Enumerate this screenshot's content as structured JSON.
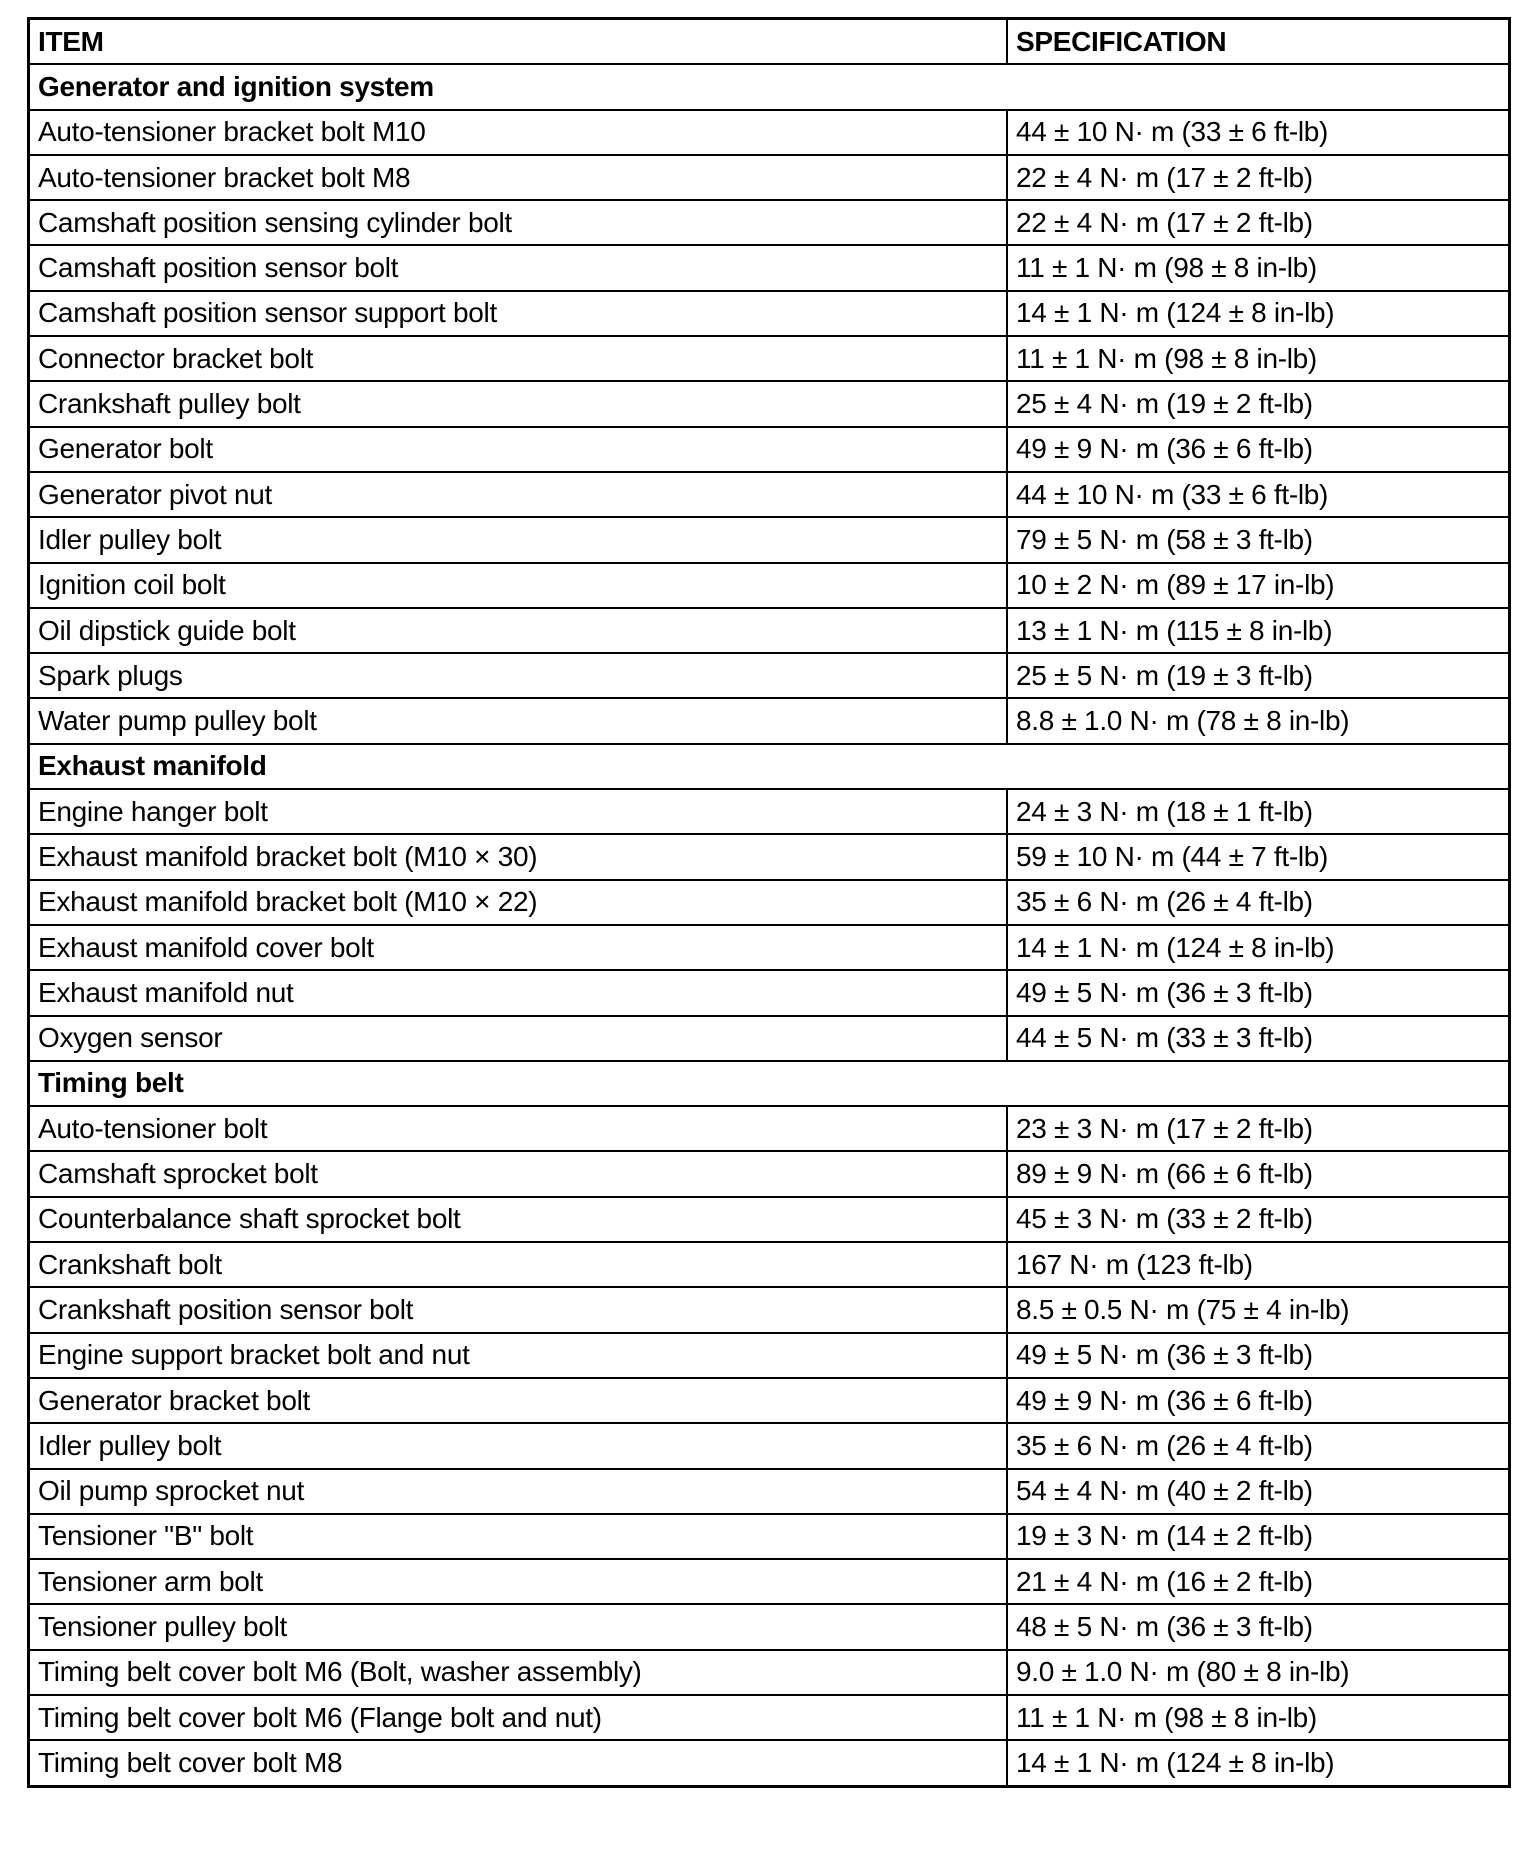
{
  "table": {
    "headers": [
      "ITEM",
      "SPECIFICATION"
    ],
    "sections": [
      {
        "title": "Generator and ignition system",
        "rows": [
          [
            "Auto-tensioner bracket bolt M10",
            "44 ± 10 N· m (33 ± 6 ft-lb)"
          ],
          [
            "Auto-tensioner bracket bolt M8",
            "22 ± 4 N· m (17 ± 2 ft-lb)"
          ],
          [
            "Camshaft position sensing cylinder bolt",
            "22 ± 4 N· m (17 ± 2 ft-lb)"
          ],
          [
            "Camshaft position sensor bolt",
            "11 ± 1 N· m (98 ± 8 in-lb)"
          ],
          [
            "Camshaft position sensor support bolt",
            "14 ± 1 N· m (124 ± 8 in-lb)"
          ],
          [
            "Connector bracket bolt",
            "11 ± 1 N· m (98 ± 8 in-lb)"
          ],
          [
            "Crankshaft pulley bolt",
            "25 ± 4 N· m (19 ± 2 ft-lb)"
          ],
          [
            "Generator bolt",
            "49 ± 9 N· m (36 ± 6 ft-lb)"
          ],
          [
            "Generator pivot nut",
            "44 ± 10 N· m (33 ± 6 ft-lb)"
          ],
          [
            "Idler pulley bolt",
            "79 ± 5 N· m (58 ± 3 ft-lb)"
          ],
          [
            "Ignition coil bolt",
            "10 ± 2 N· m (89 ± 17 in-lb)"
          ],
          [
            "Oil dipstick guide bolt",
            "13 ± 1 N· m (115 ± 8 in-lb)"
          ],
          [
            "Spark plugs",
            "25 ± 5 N· m (19 ± 3 ft-lb)"
          ],
          [
            "Water pump pulley bolt",
            "8.8 ± 1.0 N· m (78 ± 8 in-lb)"
          ]
        ]
      },
      {
        "title": "Exhaust manifold",
        "rows": [
          [
            "Engine hanger bolt",
            "24 ± 3 N· m (18 ± 1 ft-lb)"
          ],
          [
            "Exhaust manifold bracket bolt (M10 × 30)",
            "59 ± 10 N· m (44 ± 7 ft-lb)"
          ],
          [
            "Exhaust manifold bracket bolt (M10 × 22)",
            "35 ± 6 N· m (26 ± 4 ft-lb)"
          ],
          [
            "Exhaust manifold cover bolt",
            "14 ± 1 N· m (124 ± 8 in-lb)"
          ],
          [
            "Exhaust manifold nut",
            "49 ± 5 N· m (36 ± 3 ft-lb)"
          ],
          [
            "Oxygen sensor",
            "44 ± 5 N· m (33 ± 3 ft-lb)"
          ]
        ]
      },
      {
        "title": "Timing belt",
        "rows": [
          [
            "Auto-tensioner bolt",
            "23 ± 3 N· m (17 ± 2 ft-lb)"
          ],
          [
            "Camshaft sprocket bolt",
            "89 ± 9 N· m (66 ± 6 ft-lb)"
          ],
          [
            "Counterbalance shaft sprocket bolt",
            "45 ± 3 N· m (33 ± 2 ft-lb)"
          ],
          [
            "Crankshaft bolt",
            "167 N· m (123 ft-lb)"
          ],
          [
            "Crankshaft position sensor bolt",
            "8.5 ± 0.5 N· m (75 ± 4 in-lb)"
          ],
          [
            "Engine support bracket bolt and nut",
            "49 ± 5 N· m (36 ± 3 ft-lb)"
          ],
          [
            "Generator bracket bolt",
            "49 ± 9 N· m (36 ± 6 ft-lb)"
          ],
          [
            "Idler pulley bolt",
            "35 ± 6 N· m (26 ± 4 ft-lb)"
          ],
          [
            "Oil pump sprocket nut",
            "54 ± 4 N· m (40 ± 2 ft-lb)"
          ],
          [
            "Tensioner \"B\" bolt",
            "19 ± 3 N· m (14 ± 2 ft-lb)"
          ],
          [
            "Tensioner arm bolt",
            "21 ± 4 N· m (16 ± 2 ft-lb)"
          ],
          [
            "Tensioner pulley bolt",
            "48 ± 5 N· m (36 ± 3 ft-lb)"
          ],
          [
            "Timing belt cover bolt M6 (Bolt, washer assembly)",
            "9.0 ± 1.0 N· m (80 ± 8 in-lb)"
          ],
          [
            "Timing belt cover bolt M6 (Flange bolt and nut)",
            "11 ± 1 N· m (98 ± 8 in-lb)"
          ],
          [
            "Timing belt cover bolt M8",
            "14 ± 1 N· m (124 ± 8 in-lb)"
          ]
        ]
      }
    ]
  }
}
